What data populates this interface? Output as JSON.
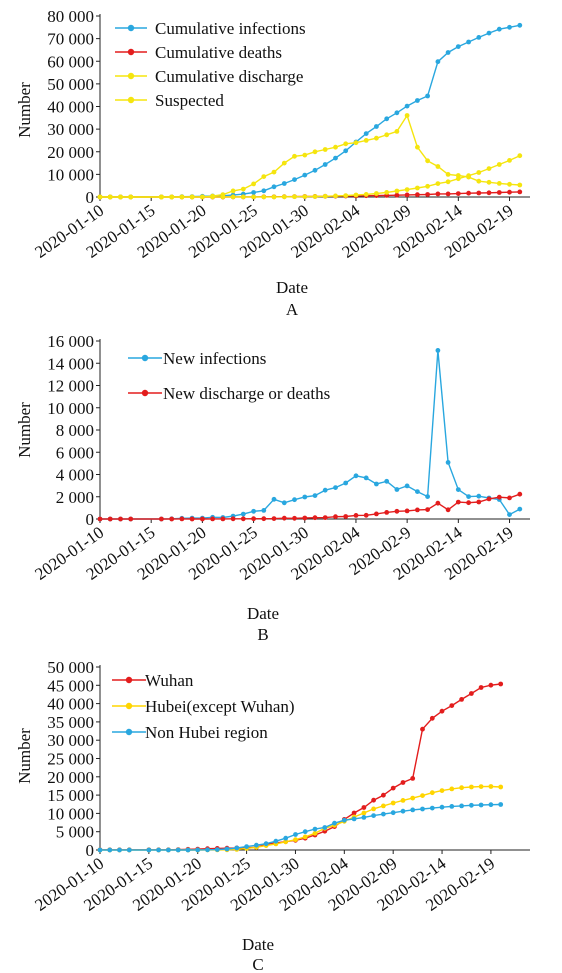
{
  "chart_data": [
    {
      "type": "line",
      "panel_label": "A",
      "xlabel": "Date",
      "ylabel": "Number",
      "ylim": [
        0,
        80000
      ],
      "y_ticks": [
        "0",
        "10 000",
        "20 000",
        "30 000",
        "40 000",
        "50 000",
        "60 000",
        "70 000",
        "80 000"
      ],
      "x_ticks": [
        "2020-01-10",
        "2020-01-15",
        "2020-01-20",
        "2020-01-25",
        "2020-01-30",
        "2020-02-04",
        "2020-02-09",
        "2020-02-14",
        "2020-02-19"
      ],
      "legend_position": "top-left",
      "series": [
        {
          "name": "Cumulative infections",
          "color": "#29a7df",
          "marker": "dot",
          "x": [
            "2020-01-10",
            "2020-01-11",
            "2020-01-12",
            "2020-01-13",
            "2020-01-16",
            "2020-01-17",
            "2020-01-18",
            "2020-01-19",
            "2020-01-20",
            "2020-01-21",
            "2020-01-22",
            "2020-01-23",
            "2020-01-24",
            "2020-01-25",
            "2020-01-26",
            "2020-01-27",
            "2020-01-28",
            "2020-01-29",
            "2020-01-30",
            "2020-01-31",
            "2020-02-01",
            "2020-02-02",
            "2020-02-03",
            "2020-02-04",
            "2020-02-05",
            "2020-02-06",
            "2020-02-07",
            "2020-02-08",
            "2020-02-09",
            "2020-02-10",
            "2020-02-11",
            "2020-02-12",
            "2020-02-13",
            "2020-02-14",
            "2020-02-15",
            "2020-02-16",
            "2020-02-17",
            "2020-02-18",
            "2020-02-19",
            "2020-02-20"
          ],
          "values": [
            41,
            41,
            41,
            41,
            45,
            62,
            121,
            198,
            291,
            440,
            571,
            830,
            1287,
            1975,
            2744,
            4515,
            5974,
            7711,
            9692,
            11791,
            14380,
            17205,
            20438,
            24324,
            28018,
            31161,
            34546,
            37198,
            40171,
            42638,
            44653,
            59804,
            63851,
            66492,
            68500,
            70548,
            72436,
            74185,
            75002,
            75891
          ]
        },
        {
          "name": "Cumulative deaths",
          "color": "#e31d1d",
          "marker": "dot",
          "x": [
            "2020-01-10",
            "2020-01-11",
            "2020-01-12",
            "2020-01-13",
            "2020-01-16",
            "2020-01-17",
            "2020-01-18",
            "2020-01-19",
            "2020-01-20",
            "2020-01-21",
            "2020-01-22",
            "2020-01-23",
            "2020-01-24",
            "2020-01-25",
            "2020-01-26",
            "2020-01-27",
            "2020-01-28",
            "2020-01-29",
            "2020-01-30",
            "2020-01-31",
            "2020-02-01",
            "2020-02-02",
            "2020-02-03",
            "2020-02-04",
            "2020-02-05",
            "2020-02-06",
            "2020-02-07",
            "2020-02-08",
            "2020-02-09",
            "2020-02-10",
            "2020-02-11",
            "2020-02-12",
            "2020-02-13",
            "2020-02-14",
            "2020-02-15",
            "2020-02-16",
            "2020-02-17",
            "2020-02-18",
            "2020-02-19",
            "2020-02-20"
          ],
          "values": [
            1,
            1,
            1,
            1,
            2,
            2,
            3,
            4,
            6,
            9,
            17,
            25,
            41,
            56,
            80,
            106,
            132,
            170,
            213,
            259,
            304,
            361,
            425,
            490,
            563,
            636,
            722,
            811,
            908,
            1016,
            1113,
            1367,
            1380,
            1523,
            1665,
            1770,
            1868,
            2004,
            2118,
            2236
          ]
        },
        {
          "name": "Cumulative discharge",
          "color": "#f5e50e",
          "marker": "dot",
          "x": [
            "2020-01-10",
            "2020-01-11",
            "2020-01-12",
            "2020-01-13",
            "2020-01-16",
            "2020-01-17",
            "2020-01-18",
            "2020-01-19",
            "2020-01-20",
            "2020-01-21",
            "2020-01-22",
            "2020-01-23",
            "2020-01-24",
            "2020-01-25",
            "2020-01-26",
            "2020-01-27",
            "2020-01-28",
            "2020-01-29",
            "2020-01-30",
            "2020-01-31",
            "2020-02-01",
            "2020-02-02",
            "2020-02-03",
            "2020-02-04",
            "2020-02-05",
            "2020-02-06",
            "2020-02-07",
            "2020-02-08",
            "2020-02-09",
            "2020-02-10",
            "2020-02-11",
            "2020-02-12",
            "2020-02-13",
            "2020-02-14",
            "2020-02-15",
            "2020-02-16",
            "2020-02-17",
            "2020-02-18",
            "2020-02-19",
            "2020-02-20"
          ],
          "values": [
            2,
            6,
            7,
            7,
            15,
            19,
            25,
            25,
            25,
            28,
            28,
            34,
            38,
            49,
            51,
            60,
            103,
            124,
            171,
            243,
            328,
            475,
            632,
            892,
            1153,
            1540,
            2050,
            2649,
            3281,
            3996,
            4740,
            5911,
            6723,
            8096,
            9419,
            10844,
            12552,
            14376,
            16155,
            18264
          ]
        },
        {
          "name": "Suspected",
          "color": "#f5e50e",
          "marker": "dot",
          "x": [
            "2020-01-10",
            "2020-01-11",
            "2020-01-12",
            "2020-01-13",
            "2020-01-16",
            "2020-01-17",
            "2020-01-18",
            "2020-01-19",
            "2020-01-20",
            "2020-01-21",
            "2020-01-22",
            "2020-01-23",
            "2020-01-24",
            "2020-01-25",
            "2020-01-26",
            "2020-01-27",
            "2020-01-28",
            "2020-01-29",
            "2020-01-30",
            "2020-01-31",
            "2020-02-01",
            "2020-02-02",
            "2020-02-03",
            "2020-02-04",
            "2020-02-05",
            "2020-02-06",
            "2020-02-07",
            "2020-02-08",
            "2020-02-09",
            "2020-02-10",
            "2020-02-11",
            "2020-02-12",
            "2020-02-13",
            "2020-02-14",
            "2020-02-15",
            "2020-02-16",
            "2020-02-17",
            "2020-02-18",
            "2020-02-19",
            "2020-02-20"
          ],
          "values": [
            0,
            0,
            0,
            0,
            0,
            0,
            0,
            0,
            54,
            393,
            1072,
            2684,
            3500,
            5794,
            9000,
            11000,
            15000,
            18000,
            18500,
            20000,
            21000,
            22000,
            23500,
            24000,
            25000,
            26000,
            27500,
            29000,
            36000,
            22000,
            16000,
            13500,
            10000,
            9500,
            8800,
            7000,
            6500,
            6000,
            5600,
            5300
          ]
        }
      ]
    },
    {
      "type": "line",
      "panel_label": "B",
      "xlabel": "Date",
      "ylabel": "Number",
      "ylim": [
        0,
        16000
      ],
      "y_ticks": [
        "0",
        "2 000",
        "4 000",
        "6 000",
        "8 000",
        "10 000",
        "12 000",
        "14 000",
        "16 000"
      ],
      "x_ticks": [
        "2020-01-10",
        "2020-01-15",
        "2020-01-20",
        "2020-01-25",
        "2020-01-30",
        "2020-02-04",
        "2020-02-9",
        "2020-02-14",
        "2020-02-19"
      ],
      "legend_position": "top-left",
      "series": [
        {
          "name": "New infections",
          "color": "#29a7df",
          "marker": "dot",
          "x": [
            "2020-01-10",
            "2020-01-11",
            "2020-01-12",
            "2020-01-13",
            "2020-01-16",
            "2020-01-17",
            "2020-01-18",
            "2020-01-19",
            "2020-01-20",
            "2020-01-21",
            "2020-01-22",
            "2020-01-23",
            "2020-01-24",
            "2020-01-25",
            "2020-01-26",
            "2020-01-27",
            "2020-01-28",
            "2020-01-29",
            "2020-01-30",
            "2020-01-31",
            "2020-02-01",
            "2020-02-02",
            "2020-02-03",
            "2020-02-04",
            "2020-02-05",
            "2020-02-06",
            "2020-02-07",
            "2020-02-08",
            "2020-02-09",
            "2020-02-10",
            "2020-02-11",
            "2020-02-12",
            "2020-02-13",
            "2020-02-14",
            "2020-02-15",
            "2020-02-16",
            "2020-02-17",
            "2020-02-18",
            "2020-02-19",
            "2020-02-20"
          ],
          "values": [
            0,
            0,
            0,
            0,
            4,
            17,
            59,
            77,
            77,
            149,
            131,
            259,
            444,
            688,
            769,
            1771,
            1459,
            1737,
            1981,
            2099,
            2589,
            2825,
            3233,
            3887,
            3694,
            3143,
            3385,
            2652,
            2973,
            2467,
            2015,
            15152,
            5090,
            2641,
            2009,
            2048,
            1886,
            1749,
            394,
            889
          ]
        },
        {
          "name": "New discharge or deaths",
          "color": "#e31d1d",
          "marker": "dot",
          "x": [
            "2020-01-10",
            "2020-01-11",
            "2020-01-12",
            "2020-01-13",
            "2020-01-16",
            "2020-01-17",
            "2020-01-18",
            "2020-01-19",
            "2020-01-20",
            "2020-01-21",
            "2020-01-22",
            "2020-01-23",
            "2020-01-24",
            "2020-01-25",
            "2020-01-26",
            "2020-01-27",
            "2020-01-28",
            "2020-01-29",
            "2020-01-30",
            "2020-01-31",
            "2020-02-01",
            "2020-02-02",
            "2020-02-03",
            "2020-02-04",
            "2020-02-05",
            "2020-02-06",
            "2020-02-07",
            "2020-02-08",
            "2020-02-09",
            "2020-02-10",
            "2020-02-11",
            "2020-02-12",
            "2020-02-13",
            "2020-02-14",
            "2020-02-15",
            "2020-02-16",
            "2020-02-17",
            "2020-02-18",
            "2020-02-19",
            "2020-02-20"
          ],
          "values": [
            0,
            0,
            0,
            0,
            1,
            4,
            7,
            1,
            2,
            6,
            8,
            14,
            20,
            26,
            26,
            35,
            69,
            59,
            90,
            118,
            130,
            204,
            221,
            325,
            334,
            460,
            596,
            688,
            729,
            822,
            841,
            1423,
            826,
            1516,
            1465,
            1530,
            1806,
            1960,
            1893,
            2227
          ]
        }
      ]
    },
    {
      "type": "line",
      "panel_label": "C",
      "xlabel": "Date",
      "ylabel": "Number",
      "ylim": [
        0,
        50000
      ],
      "y_ticks": [
        "0",
        "5 000",
        "10 000",
        "15 000",
        "20 000",
        "25 000",
        "30 000",
        "35 000",
        "40 000",
        "45 000",
        "50 000"
      ],
      "x_ticks": [
        "2020-01-10",
        "2020-01-15",
        "2020-01-20",
        "2020-01-25",
        "2020-01-30",
        "2020-02-04",
        "2020-02-09",
        "2020-02-14",
        "2020-02-19"
      ],
      "legend_position": "top-left",
      "series": [
        {
          "name": "Wuhan",
          "color": "#e31d1d",
          "marker": "dot",
          "x": [
            "2020-01-10",
            "2020-01-11",
            "2020-01-12",
            "2020-01-13",
            "2020-01-15",
            "2020-01-16",
            "2020-01-17",
            "2020-01-18",
            "2020-01-19",
            "2020-01-20",
            "2020-01-21",
            "2020-01-22",
            "2020-01-23",
            "2020-01-24",
            "2020-01-25",
            "2020-01-26",
            "2020-01-27",
            "2020-01-28",
            "2020-01-29",
            "2020-01-30",
            "2020-01-31",
            "2020-02-01",
            "2020-02-02",
            "2020-02-03",
            "2020-02-04",
            "2020-02-05",
            "2020-02-06",
            "2020-02-07",
            "2020-02-08",
            "2020-02-09",
            "2020-02-10",
            "2020-02-11",
            "2020-02-12",
            "2020-02-13",
            "2020-02-14",
            "2020-02-15",
            "2020-02-16",
            "2020-02-17",
            "2020-02-18",
            "2020-02-19",
            "2020-02-20"
          ],
          "values": [
            41,
            41,
            41,
            41,
            41,
            45,
            62,
            121,
            198,
            258,
            363,
            425,
            495,
            572,
            618,
            698,
            1590,
            1905,
            2261,
            2639,
            3215,
            4109,
            5142,
            6384,
            8351,
            10117,
            11618,
            13603,
            14982,
            16902,
            18454,
            19558,
            32994,
            35991,
            37914,
            39462,
            41152,
            42752,
            44412,
            45027,
            45346
          ]
        },
        {
          "name": "Hubei(except Wuhan)",
          "color": "#ffd500",
          "marker": "dot",
          "x": [
            "2020-01-10",
            "2020-01-11",
            "2020-01-12",
            "2020-01-13",
            "2020-01-15",
            "2020-01-16",
            "2020-01-17",
            "2020-01-18",
            "2020-01-19",
            "2020-01-20",
            "2020-01-21",
            "2020-01-22",
            "2020-01-23",
            "2020-01-24",
            "2020-01-25",
            "2020-01-26",
            "2020-01-27",
            "2020-01-28",
            "2020-01-29",
            "2020-01-30",
            "2020-01-31",
            "2020-02-01",
            "2020-02-02",
            "2020-02-03",
            "2020-02-04",
            "2020-02-05",
            "2020-02-06",
            "2020-02-07",
            "2020-02-08",
            "2020-02-09",
            "2020-02-10",
            "2020-02-11",
            "2020-02-12",
            "2020-02-13",
            "2020-02-14",
            "2020-02-15",
            "2020-02-16",
            "2020-02-17",
            "2020-02-18",
            "2020-02-19",
            "2020-02-20"
          ],
          "values": [
            0,
            0,
            0,
            0,
            0,
            0,
            0,
            0,
            0,
            12,
            20,
            26,
            54,
            157,
            434,
            725,
            1195,
            1656,
            2232,
            2814,
            3589,
            4553,
            5923,
            6740,
            7831,
            9030,
            10112,
            11237,
            12049,
            12829,
            13557,
            14178,
            14858,
            15666,
            16230,
            16701,
            17011,
            17223,
            17332,
            17341,
            17209
          ]
        },
        {
          "name": "Non Hubei region",
          "color": "#29a7df",
          "marker": "dot",
          "x": [
            "2020-01-10",
            "2020-01-11",
            "2020-01-12",
            "2020-01-13",
            "2020-01-15",
            "2020-01-16",
            "2020-01-17",
            "2020-01-18",
            "2020-01-19",
            "2020-01-20",
            "2020-01-21",
            "2020-01-22",
            "2020-01-23",
            "2020-01-24",
            "2020-01-25",
            "2020-01-26",
            "2020-01-27",
            "2020-01-28",
            "2020-01-29",
            "2020-01-30",
            "2020-01-31",
            "2020-02-01",
            "2020-02-02",
            "2020-02-03",
            "2020-02-04",
            "2020-02-05",
            "2020-02-06",
            "2020-02-07",
            "2020-02-08",
            "2020-02-09",
            "2020-02-10",
            "2020-02-11",
            "2020-02-12",
            "2020-02-13",
            "2020-02-14",
            "2020-02-15",
            "2020-02-16",
            "2020-02-17",
            "2020-02-18",
            "2020-02-19",
            "2020-02-20"
          ],
          "values": [
            0,
            0,
            0,
            0,
            0,
            0,
            0,
            0,
            0,
            21,
            57,
            120,
            281,
            558,
            923,
            1321,
            1730,
            2413,
            3218,
            4239,
            4987,
            5718,
            6140,
            7314,
            8142,
            8500,
            8900,
            9400,
            9800,
            10200,
            10600,
            10950,
            11200,
            11450,
            11700,
            11900,
            12050,
            12200,
            12300,
            12380,
            12430
          ]
        }
      ]
    }
  ]
}
